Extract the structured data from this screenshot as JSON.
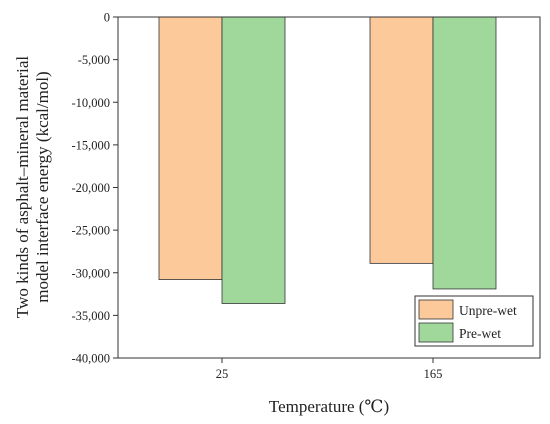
{
  "chart_data": {
    "type": "bar",
    "categories": [
      "25",
      "165"
    ],
    "series": [
      {
        "name": "Unpre-wet",
        "values": [
          -30800,
          -28900
        ],
        "color": "#fcc99b"
      },
      {
        "name": "Pre-wet",
        "values": [
          -33600,
          -31900
        ],
        "color": "#9fd89a"
      }
    ],
    "xlabel": "Temperature (℃)",
    "ylabel_lines": [
      "Two kinds of asphalt–mineral material",
      "model interface energy (kcal/mol)"
    ],
    "ylim": [
      -40000,
      0
    ],
    "yticks": [
      0,
      -5000,
      -10000,
      -15000,
      -20000,
      -25000,
      -30000,
      -35000,
      -40000
    ],
    "ytick_labels": [
      "0",
      "-5,000",
      "-10,000",
      "-15,000",
      "-20,000",
      "-25,000",
      "-30,000",
      "-35,000",
      "-40,000"
    ],
    "legend_position": "bottom-right",
    "grid": false
  }
}
